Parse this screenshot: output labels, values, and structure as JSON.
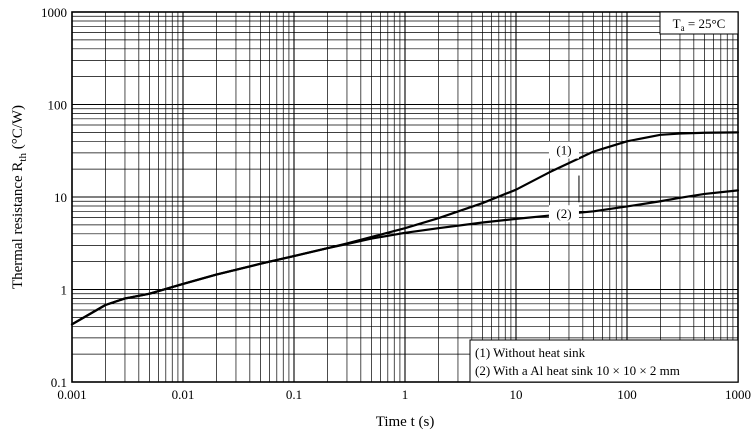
{
  "chart_data": {
    "type": "line",
    "x_scale": "log",
    "y_scale": "log",
    "xlim": [
      0.001,
      1000
    ],
    "ylim": [
      0.1,
      1000
    ],
    "xlabel": "Time  t  (s)",
    "ylabel": {
      "main": "Thermal resistance  R",
      "sub": "th",
      "unit": "  (°C/W)"
    },
    "x_ticks": [
      "0.001",
      "0.01",
      "0.1",
      "1",
      "10",
      "100",
      "1000"
    ],
    "y_ticks": [
      "0.1",
      "1",
      "10",
      "100",
      "1000"
    ],
    "grid": true,
    "condition": {
      "main": "T",
      "sub": "a",
      "rest": " = 25°C"
    },
    "legend": [
      "(1) Without heat sink",
      "(2) With a Al heat sink 10 × 10 × 2 mm"
    ],
    "legend_position": "bottom-right",
    "series": [
      {
        "name": "(1)",
        "x": [
          0.001,
          0.002,
          0.003,
          0.005,
          0.01,
          0.02,
          0.05,
          0.1,
          0.2,
          0.3,
          0.5,
          1,
          2,
          5,
          10,
          20,
          50,
          100,
          200,
          300,
          500,
          1000
        ],
        "y": [
          0.42,
          0.68,
          0.8,
          0.9,
          1.15,
          1.45,
          1.9,
          2.3,
          2.8,
          3.15,
          3.7,
          4.6,
          5.9,
          8.6,
          12,
          18.5,
          31,
          40,
          47,
          48.5,
          49.5,
          50
        ]
      },
      {
        "name": "(2)",
        "x": [
          0.001,
          0.002,
          0.003,
          0.005,
          0.01,
          0.02,
          0.05,
          0.1,
          0.2,
          0.3,
          0.5,
          1,
          2,
          5,
          10,
          20,
          50,
          100,
          200,
          300,
          500,
          1000
        ],
        "y": [
          0.42,
          0.68,
          0.8,
          0.9,
          1.15,
          1.45,
          1.9,
          2.3,
          2.8,
          3.1,
          3.55,
          4.1,
          4.6,
          5.3,
          5.8,
          6.3,
          7.0,
          7.9,
          9.0,
          9.8,
          10.8,
          11.8
        ]
      }
    ],
    "annotations": [
      "(1)",
      "(2)"
    ]
  }
}
